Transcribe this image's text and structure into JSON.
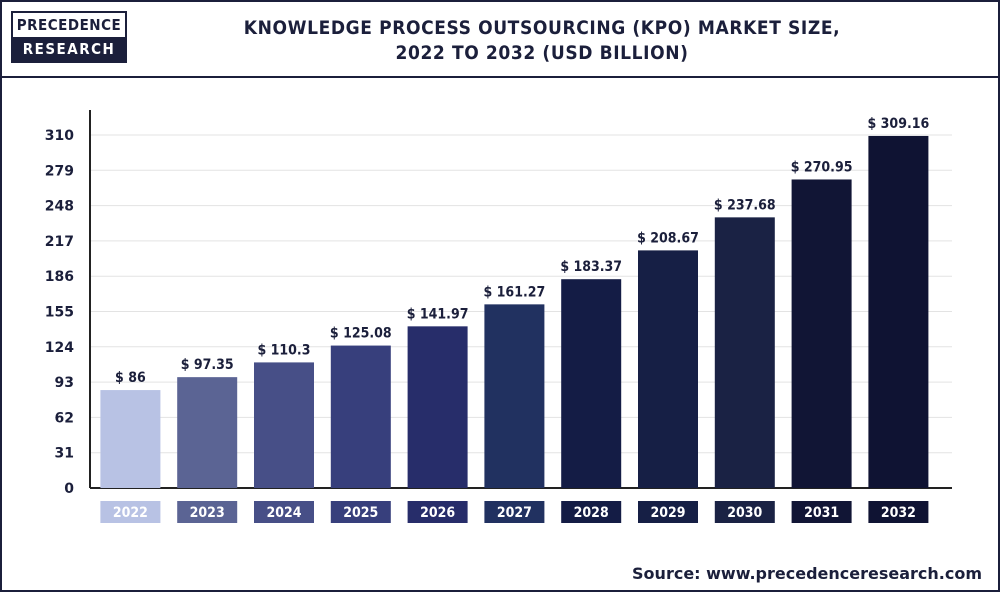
{
  "logo": {
    "line1": "PRECEDENCE",
    "line2": "RESEARCH"
  },
  "source": "Source: www.precedenceresearch.com",
  "chart_data": {
    "type": "bar",
    "title": "KNOWLEDGE PROCESS OUTSOURCING (KPO) MARKET SIZE,",
    "subtitle": "2022 TO 2032 (USD BILLION)",
    "xlabel": "",
    "ylabel": "",
    "categories": [
      "2022",
      "2023",
      "2024",
      "2025",
      "2026",
      "2027",
      "2028",
      "2029",
      "2030",
      "2031",
      "2032"
    ],
    "values": [
      86,
      97.35,
      110.3,
      125.08,
      141.97,
      161.27,
      183.37,
      208.67,
      237.68,
      270.95,
      309.16
    ],
    "data_labels": [
      "$ 86",
      "$ 97.35",
      "$ 110.3",
      "$ 125.08",
      "$ 141.97",
      "$ 161.27",
      "$ 183.37",
      "$ 208.67",
      "$ 237.68",
      "$ 270.95",
      "$ 309.16"
    ],
    "yticks": [
      0,
      31,
      62,
      93,
      124,
      155,
      186,
      217,
      248,
      279,
      310
    ],
    "ylim": [
      0,
      310
    ],
    "grid": true,
    "colors": [
      "#b8c2e4",
      "#5b6494",
      "#474f87",
      "#373f7c",
      "#272d6a",
      "#213160",
      "#141c45",
      "#161f45",
      "#1a2244",
      "#111535",
      "#0f1333"
    ]
  }
}
